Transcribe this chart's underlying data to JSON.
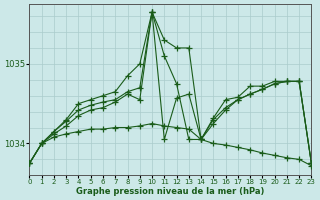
{
  "bg_color": "#cce8e8",
  "grid_color": "#aacccc",
  "line_color": "#1a5c1a",
  "title": "Graphe pression niveau de la mer (hPa)",
  "xlim": [
    0,
    23
  ],
  "ylim": [
    1033.6,
    1035.75
  ],
  "yticks": [
    1034,
    1035
  ],
  "xticks": [
    0,
    1,
    2,
    3,
    4,
    5,
    6,
    7,
    8,
    9,
    10,
    11,
    12,
    13,
    14,
    15,
    16,
    17,
    18,
    19,
    20,
    21,
    22,
    23
  ],
  "series": [
    {
      "y": [
        1033.75,
        1034.0,
        1034.15,
        1034.3,
        1034.5,
        1034.55,
        1034.6,
        1034.65,
        1034.85,
        1035.0,
        1035.65,
        1035.3,
        1035.2,
        1035.2,
        1034.05,
        1034.32,
        1034.55,
        1034.58,
        1034.72,
        1034.72,
        1034.78,
        1034.78,
        1034.78,
        1033.75
      ]
    },
    {
      "y": [
        1033.75,
        1034.0,
        1034.15,
        1034.28,
        1034.42,
        1034.48,
        1034.52,
        1034.55,
        1034.65,
        1034.7,
        1035.65,
        1035.1,
        1034.75,
        1034.05,
        1034.05,
        1034.25,
        1034.42,
        1034.55,
        1034.62,
        1034.68,
        1034.75,
        1034.78,
        1034.78,
        1033.75
      ]
    },
    {
      "y": [
        1033.75,
        1034.0,
        1034.12,
        1034.22,
        1034.35,
        1034.42,
        1034.45,
        1034.52,
        1034.62,
        1034.55,
        1035.65,
        1034.05,
        1034.57,
        1034.62,
        1034.05,
        1034.3,
        1034.45,
        1034.55,
        1034.62,
        1034.68,
        1034.75,
        1034.78,
        1034.78,
        1033.75
      ]
    },
    {
      "y": [
        1033.75,
        1034.0,
        1034.08,
        1034.12,
        1034.15,
        1034.18,
        1034.18,
        1034.2,
        1034.2,
        1034.22,
        1034.25,
        1034.22,
        1034.2,
        1034.18,
        1034.05,
        1034.0,
        1033.98,
        1033.95,
        1033.92,
        1033.88,
        1033.85,
        1033.82,
        1033.8,
        1033.72
      ]
    }
  ]
}
